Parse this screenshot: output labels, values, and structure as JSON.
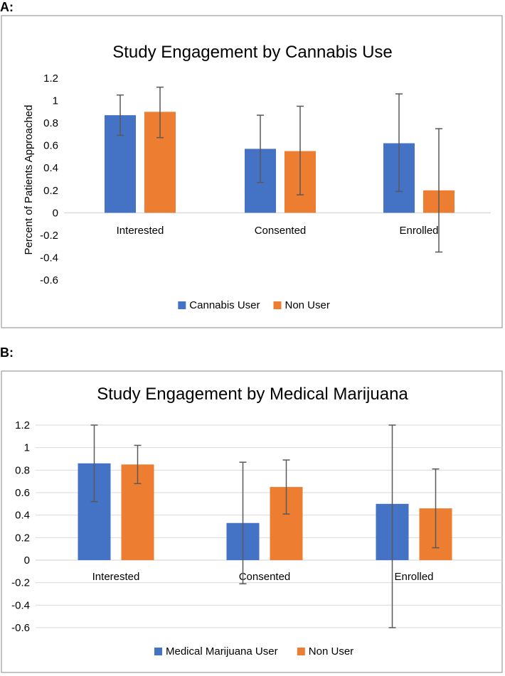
{
  "panel_labels": [
    "A:",
    "B:"
  ],
  "colors": {
    "series1": "#4472C4",
    "series2": "#ED7D31",
    "grid": "#d9d9d9",
    "frame": "#8a8a8a",
    "error": "#595959"
  },
  "chart_data": [
    {
      "type": "bar",
      "title": "Study Engagement by Cannabis Use",
      "xlabel": "",
      "ylabel": "Percent of Patients Approached",
      "ylim": [
        -0.6,
        1.2
      ],
      "yticks": [
        "1.2",
        "1",
        "0.8",
        "0.6",
        "0.4",
        "0.2",
        "0",
        "-0.2",
        "-0.4",
        "-0.6"
      ],
      "grid": false,
      "legend": "bottom",
      "categories": [
        "Interested",
        "Consented",
        "Enrolled"
      ],
      "series": [
        {
          "name": "Cannabis User",
          "values": [
            0.87,
            0.57,
            0.62
          ],
          "err_low": [
            0.69,
            0.27,
            0.19
          ],
          "err_high": [
            1.05,
            0.87,
            1.06
          ]
        },
        {
          "name": "Non User",
          "values": [
            0.9,
            0.55,
            0.2
          ],
          "err_low": [
            0.67,
            0.16,
            -0.35
          ],
          "err_high": [
            1.12,
            0.95,
            0.75
          ]
        }
      ]
    },
    {
      "type": "bar",
      "title": "Study Engagement by Medical Marijuana",
      "xlabel": "",
      "ylabel": "",
      "ylim": [
        -0.6,
        1.2
      ],
      "yticks": [
        "1.2",
        "1",
        "0.8",
        "0.6",
        "0.4",
        "0.2",
        "0",
        "-0.2",
        "-0.4",
        "-0.6"
      ],
      "grid": true,
      "legend": "bottom",
      "categories": [
        "Interested",
        "Consented",
        "Enrolled"
      ],
      "series": [
        {
          "name": "Medical Marijuana User",
          "values": [
            0.86,
            0.33,
            0.5
          ],
          "err_low": [
            0.52,
            -0.21,
            -0.6
          ],
          "err_high": [
            1.2,
            0.87,
            1.2
          ]
        },
        {
          "name": "Non User",
          "values": [
            0.85,
            0.65,
            0.46
          ],
          "err_low": [
            0.68,
            0.41,
            0.11
          ],
          "err_high": [
            1.02,
            0.89,
            0.81
          ]
        }
      ]
    }
  ]
}
